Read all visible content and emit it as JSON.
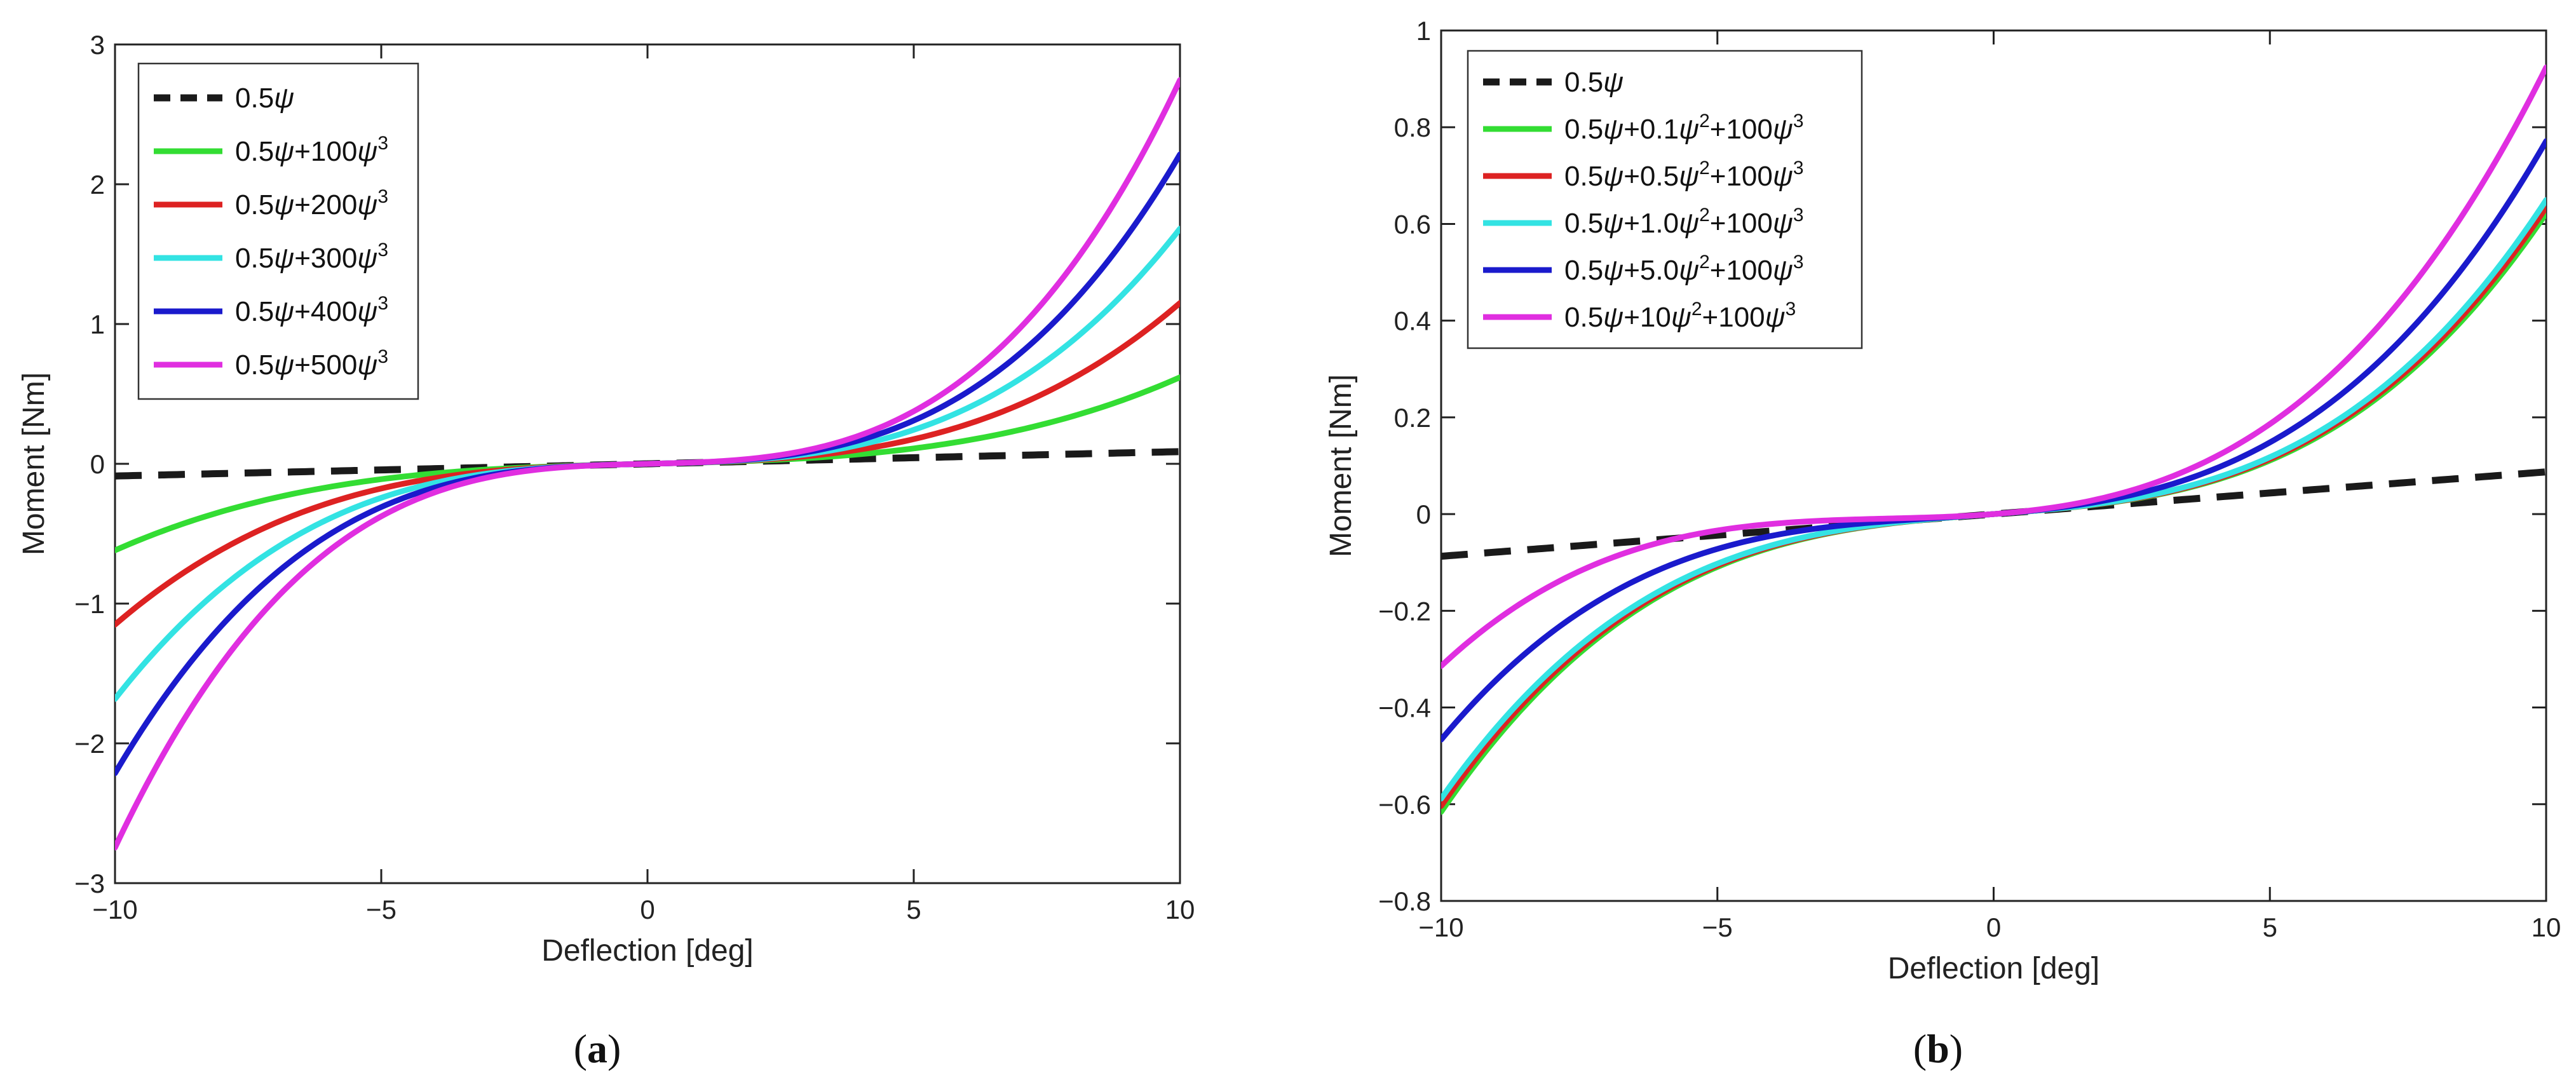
{
  "chart_data": [
    {
      "type": "line",
      "panel_label": "(a)",
      "panel_letter": "a",
      "xlabel": "Deflection [deg]",
      "ylabel": "Moment [Nm]",
      "xlim": [
        -10,
        10
      ],
      "ylim": [
        -3,
        3
      ],
      "xticks": [
        -10,
        -5,
        0,
        5,
        10
      ],
      "yticks": [
        -3,
        -2,
        -1,
        0,
        1,
        2,
        3
      ],
      "xtick_labels": [
        "−10",
        "−5",
        "0",
        "5",
        "10"
      ],
      "ytick_labels": [
        "−3",
        "−2",
        "−1",
        "0",
        "1",
        "2",
        "3"
      ],
      "legend_position": "top-left",
      "series": [
        {
          "name": "0.5ψ",
          "name_parts": [
            "0.5",
            "ψ",
            "",
            "",
            "",
            "",
            ""
          ],
          "color": "#1a1a1a",
          "dash": true,
          "a1": 0.5,
          "a2": 0,
          "a3": 0,
          "range": [
            -10,
            10
          ]
        },
        {
          "name": "0.5ψ+100ψ3",
          "name_parts": [
            "0.5",
            "ψ",
            "+100",
            "ψ",
            "3",
            "",
            ""
          ],
          "color": "#33dd33",
          "dash": false,
          "a1": 0.5,
          "a2": 0,
          "a3": 100,
          "range": [
            -10,
            10
          ]
        },
        {
          "name": "0.5ψ+200ψ3",
          "name_parts": [
            "0.5",
            "ψ",
            "+200",
            "ψ",
            "3",
            "",
            ""
          ],
          "color": "#dd2222",
          "dash": false,
          "a1": 0.5,
          "a2": 0,
          "a3": 200,
          "range": [
            -10,
            10
          ]
        },
        {
          "name": "0.5ψ+300ψ3",
          "name_parts": [
            "0.5",
            "ψ",
            "+300",
            "ψ",
            "3",
            "",
            ""
          ],
          "color": "#33e3e3",
          "dash": false,
          "a1": 0.5,
          "a2": 0,
          "a3": 300,
          "range": [
            -10,
            10
          ]
        },
        {
          "name": "0.5ψ+400ψ3",
          "name_parts": [
            "0.5",
            "ψ",
            "+400",
            "ψ",
            "3",
            "",
            ""
          ],
          "color": "#1a1acc",
          "dash": false,
          "a1": 0.5,
          "a2": 0,
          "a3": 400,
          "range": [
            -10,
            10
          ]
        },
        {
          "name": "0.5ψ+500ψ3",
          "name_parts": [
            "0.5",
            "ψ",
            "+500",
            "ψ",
            "3",
            "",
            ""
          ],
          "color": "#e02ee0",
          "dash": false,
          "a1": 0.5,
          "a2": 0,
          "a3": 500,
          "range": [
            -10,
            10
          ]
        }
      ]
    },
    {
      "type": "line",
      "panel_label": "(b)",
      "panel_letter": "b",
      "xlabel": "Deflection [deg]",
      "ylabel": "Moment [Nm]",
      "xlim": [
        -10,
        10
      ],
      "ylim": [
        -0.8,
        1
      ],
      "xticks": [
        -10,
        -5,
        0,
        5,
        10
      ],
      "yticks": [
        -0.8,
        -0.6,
        -0.4,
        -0.2,
        0,
        0.2,
        0.4,
        0.6,
        0.8,
        1
      ],
      "xtick_labels": [
        "−10",
        "−5",
        "0",
        "5",
        "10"
      ],
      "ytick_labels": [
        "−0.8",
        "−0.6",
        "−0.4",
        "−0.2",
        "0",
        "0.2",
        "0.4",
        "0.6",
        "0.8",
        "1"
      ],
      "legend_position": "top-left",
      "series": [
        {
          "name": "0.5ψ",
          "name_parts": [
            "0.5",
            "ψ",
            "",
            "",
            "",
            "",
            ""
          ],
          "color": "#1a1a1a",
          "dash": true,
          "a1": 0.5,
          "a2": 0,
          "a3": 0,
          "range": [
            -10,
            10
          ]
        },
        {
          "name": "0.5ψ+0.1ψ2+100ψ3",
          "name_parts": [
            "0.5",
            "ψ",
            "+0.1",
            "ψ",
            "2",
            "+100",
            "3"
          ],
          "color": "#33dd33",
          "dash": false,
          "a1": 0.5,
          "a2": 0.1,
          "a3": 100,
          "range": [
            -10,
            10
          ]
        },
        {
          "name": "0.5ψ+0.5ψ2+100ψ3",
          "name_parts": [
            "0.5",
            "ψ",
            "+0.5",
            "ψ",
            "2",
            "+100",
            "3"
          ],
          "color": "#dd2222",
          "dash": false,
          "a1": 0.5,
          "a2": 0.5,
          "a3": 100,
          "range": [
            -10,
            10
          ]
        },
        {
          "name": "0.5ψ+1.0ψ2+100ψ3",
          "name_parts": [
            "0.5",
            "ψ",
            "+1.0",
            "ψ",
            "2",
            "+100",
            "3"
          ],
          "color": "#33e3e3",
          "dash": false,
          "a1": 0.5,
          "a2": 1.0,
          "a3": 100,
          "range": [
            -10,
            10
          ]
        },
        {
          "name": "0.5ψ+5.0ψ2+100ψ3",
          "name_parts": [
            "0.5",
            "ψ",
            "+5.0",
            "ψ",
            "2",
            "+100",
            "3"
          ],
          "color": "#1a1acc",
          "dash": false,
          "a1": 0.5,
          "a2": 5.0,
          "a3": 100,
          "range": [
            -10,
            10
          ]
        },
        {
          "name": "0.5ψ+10ψ2+100ψ3",
          "name_parts": [
            "0.5",
            "ψ",
            "+10",
            "ψ",
            "2",
            "+100",
            "3"
          ],
          "color": "#e02ee0",
          "dash": false,
          "a1": 0.5,
          "a2": 10,
          "a3": 100,
          "range": [
            -10,
            10
          ]
        }
      ]
    }
  ]
}
